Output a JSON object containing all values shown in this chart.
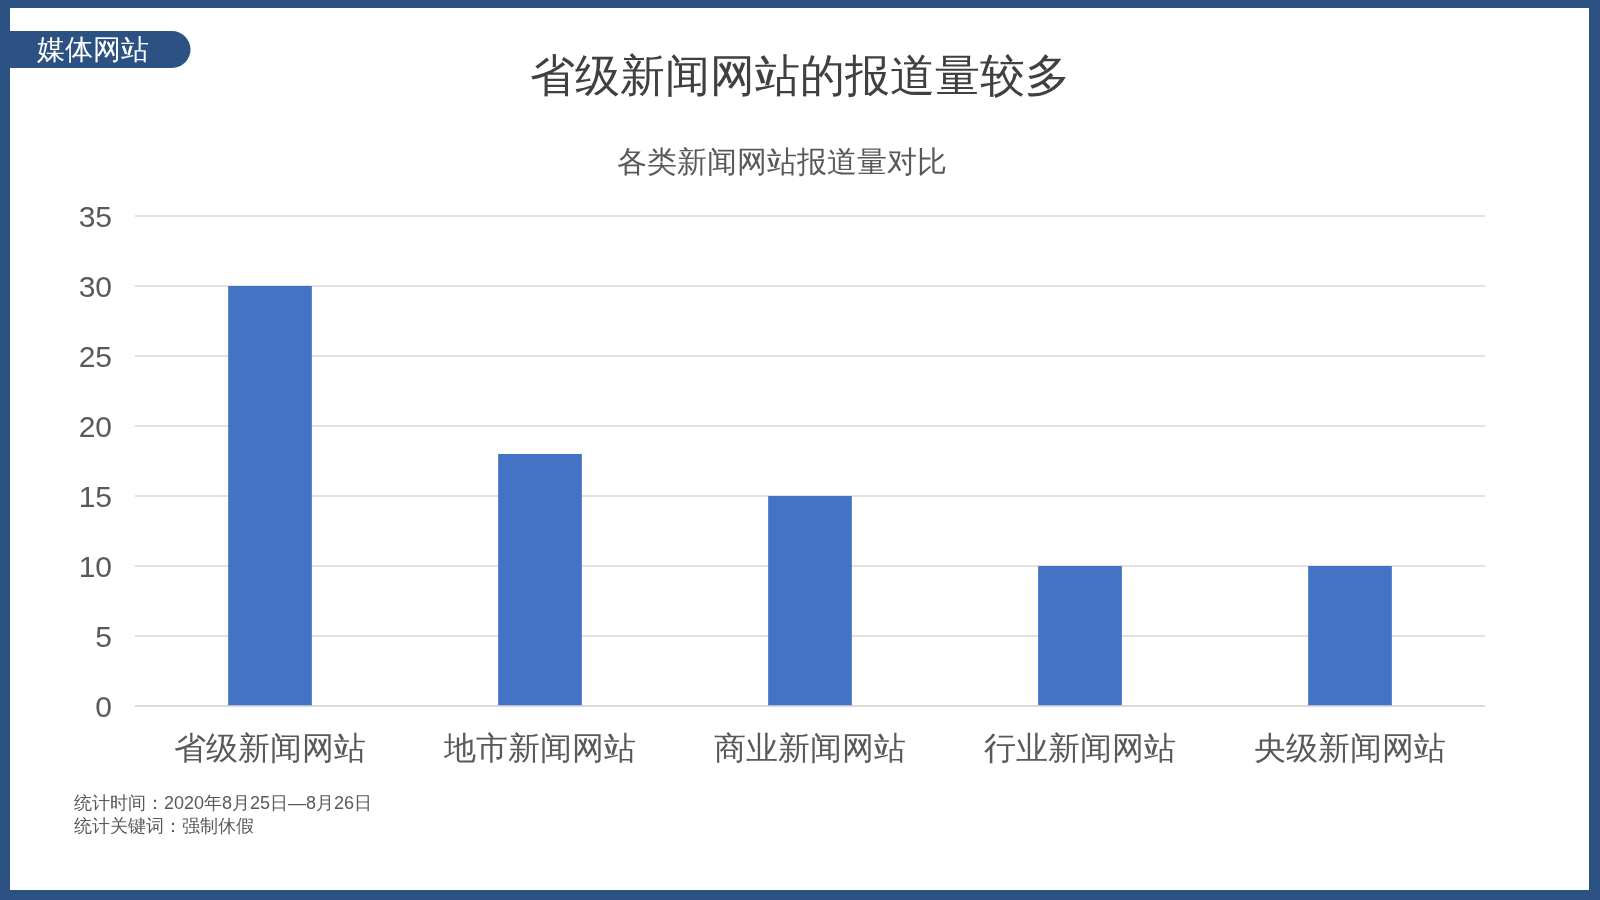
{
  "chart_data": {
    "type": "bar",
    "title": "省级新闻网站的报道量较多",
    "subtitle": "各类新闻网站报道量对比",
    "categories": [
      "省级新闻网站",
      "地市新闻网站",
      "商业新闻网站",
      "行业新闻网站",
      "央级新闻网站"
    ],
    "values": [
      30,
      18,
      15,
      10,
      10
    ],
    "color": "#4472c4",
    "ylim": [
      0,
      35
    ],
    "yticks": [
      0,
      5,
      10,
      15,
      20,
      25,
      30,
      35
    ],
    "grid": "y",
    "annotations": [
      "媒体网站",
      "统计时间：2020年8月25日—8月26日",
      "统计关键词：强制休假"
    ]
  }
}
